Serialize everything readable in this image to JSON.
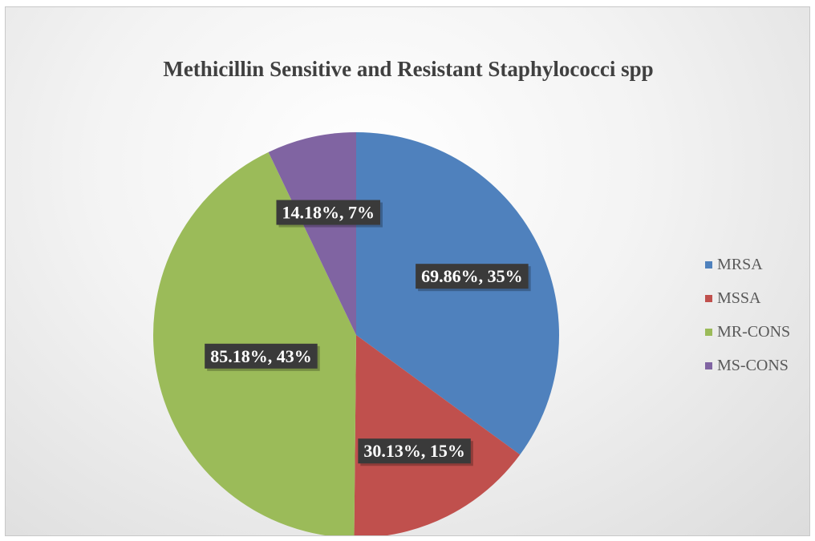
{
  "chart_data": {
    "type": "pie",
    "title": "Methicillin Sensitive and Resistant Staphylococci spp",
    "categories": [
      "MRSA",
      "MSSA",
      "MR-CONS",
      "MS-CONS"
    ],
    "values": [
      69.86,
      30.13,
      85.18,
      14.18
    ],
    "percentages": [
      35,
      15,
      43,
      7
    ],
    "data_labels": [
      "69.86%, 35%",
      "30.13%, 15%",
      "85.18%, 43%",
      "14.18%, 7%"
    ],
    "colors": [
      "#4f81bd",
      "#c0504d",
      "#9bbb59",
      "#8064a2"
    ],
    "legend_position": "right",
    "start_angle_deg": 0,
    "direction": "clockwise"
  }
}
